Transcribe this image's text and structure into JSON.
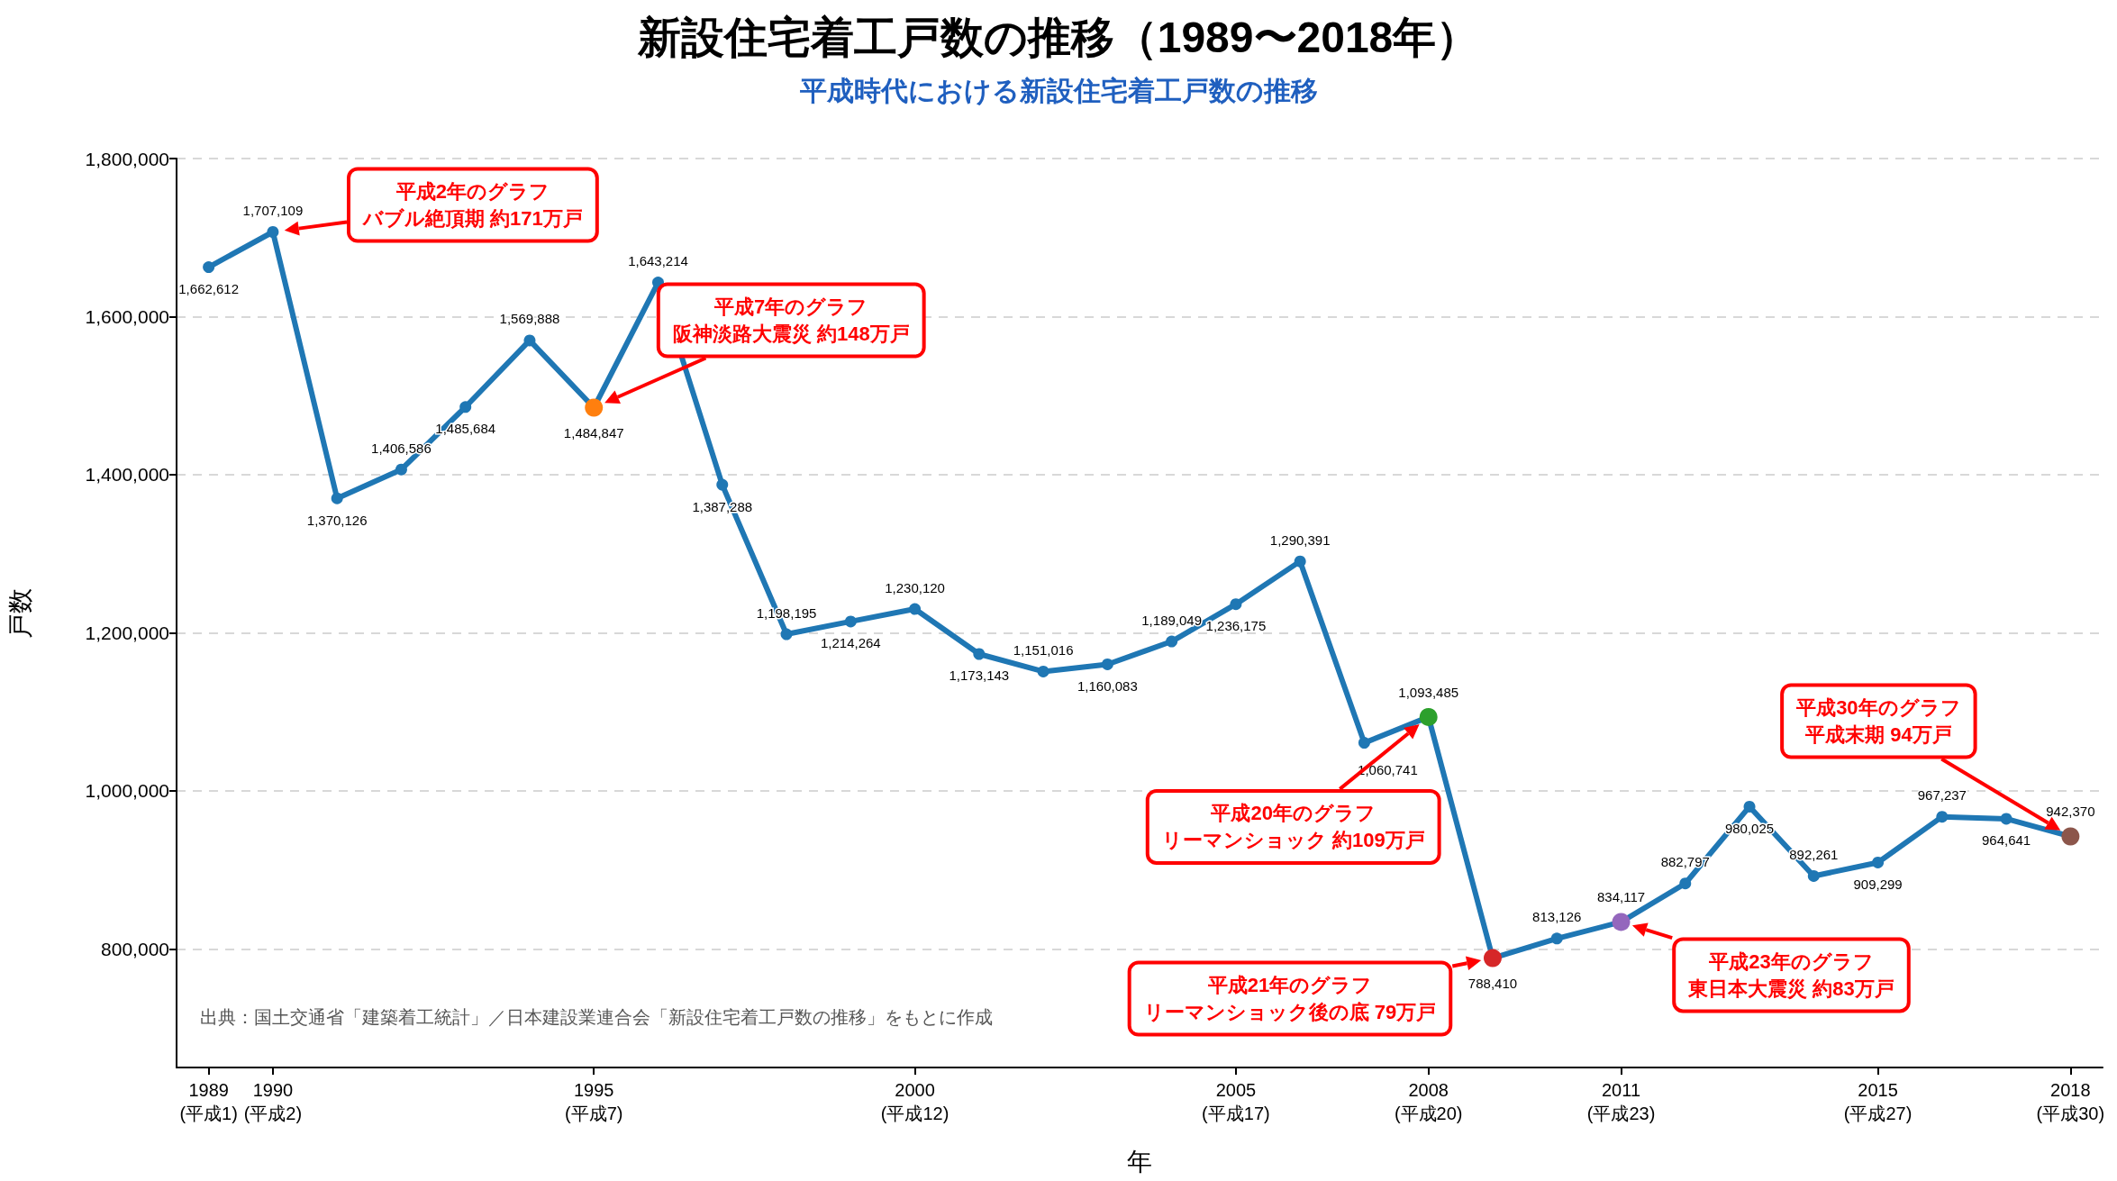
{
  "chart_data": {
    "type": "line",
    "title": "新設住宅着工戸数の推移（1989〜2018年）",
    "subtitle": "平成時代における新設住宅着工戸数の推移",
    "xlabel": "年",
    "ylabel": "戸数",
    "categories": [
      "1989\n(平成1)",
      "1990\n(平成2)",
      null,
      null,
      null,
      null,
      "1995\n(平成7)",
      null,
      null,
      null,
      null,
      "2000\n(平成12)",
      null,
      null,
      null,
      null,
      "2005\n(平成17)",
      null,
      null,
      "2008\n(平成20)",
      null,
      null,
      "2011\n(平成23)",
      null,
      null,
      null,
      "2015\n(平成27)",
      null,
      null,
      "2018\n(平成30)"
    ],
    "series": [
      {
        "color": "#1f77b4",
        "values": [
          1662612,
          1707109,
          1370126,
          1406586,
          1485684,
          1569888,
          1484847,
          1643214,
          1387288,
          1198195,
          1214264,
          1230120,
          1173143,
          1151016,
          1160083,
          1189049,
          1236175,
          1290391,
          1060741,
          1093485,
          788410,
          813126,
          834117,
          882797,
          980025,
          892261,
          909299,
          967237,
          964641,
          942370
        ],
        "value_labels": [
          "1,662,612",
          "1,707,109",
          "1,370,126",
          "1,406,586",
          "1,485,684",
          "1,569,888",
          "1,484,847",
          "1,643,214",
          "1,387,288",
          "1,198,195",
          "1,214,264",
          "1,230,120",
          "1,173,143",
          "1,151,016",
          "1,160,083",
          "1,189,049",
          "1,236,175",
          "1,290,391",
          "1,060,741",
          "1,093,485",
          "788,410",
          "813,126",
          "834,117",
          "882,797",
          "980,025",
          "892,261",
          "909,299",
          "967,237",
          "964,641",
          "942,370"
        ],
        "colors": [
          "#1f77b4",
          "#1f77b4",
          "#1f77b4",
          "#1f77b4",
          "#1f77b4",
          "#1f77b4",
          "#ff7f0e",
          "#1f77b4",
          "#1f77b4",
          "#1f77b4",
          "#1f77b4",
          "#1f77b4",
          "#1f77b4",
          "#1f77b4",
          "#1f77b4",
          "#1f77b4",
          "#1f77b4",
          "#1f77b4",
          "#1f77b4",
          "#2ca02c",
          "#d62728",
          "#1f77b4",
          "#9467bd",
          "#1f77b4",
          "#1f77b4",
          "#1f77b4",
          "#1f77b4",
          "#1f77b4",
          "#1f77b4",
          "#8c564b"
        ]
      }
    ],
    "marker": "circle",
    "line_style": "solid",
    "grid": "y",
    "ylim": [
      650000,
      1800000
    ],
    "yticks": [
      {
        "value": 800000,
        "label": "800,000"
      },
      {
        "value": 1000000,
        "label": "1,000,000"
      },
      {
        "value": 1200000,
        "label": "1,200,000"
      },
      {
        "value": 1400000,
        "label": "1,400,000"
      },
      {
        "value": 1600000,
        "label": "1,600,000"
      },
      {
        "value": 1800000,
        "label": "1,800,000"
      }
    ],
    "annotations": [
      "平成2年のグラフバブル絶頂期 約171万戸",
      "平成7年のグラフ阪神淡路大震災 約148万戸",
      "平成20年のグラフリーマンショック 約109万戸",
      "平成21年のグラフリーマンショック後の底 79万戸",
      "平成23年のグラフ東日本大震災 約83万戸",
      "平成30年のグラフ平成末期 94万戸",
      "出典：国土交通省「建築着工統計」／日本建設業連合会「新設住宅着工戸数の推移」をもとに作成"
    ]
  }
}
